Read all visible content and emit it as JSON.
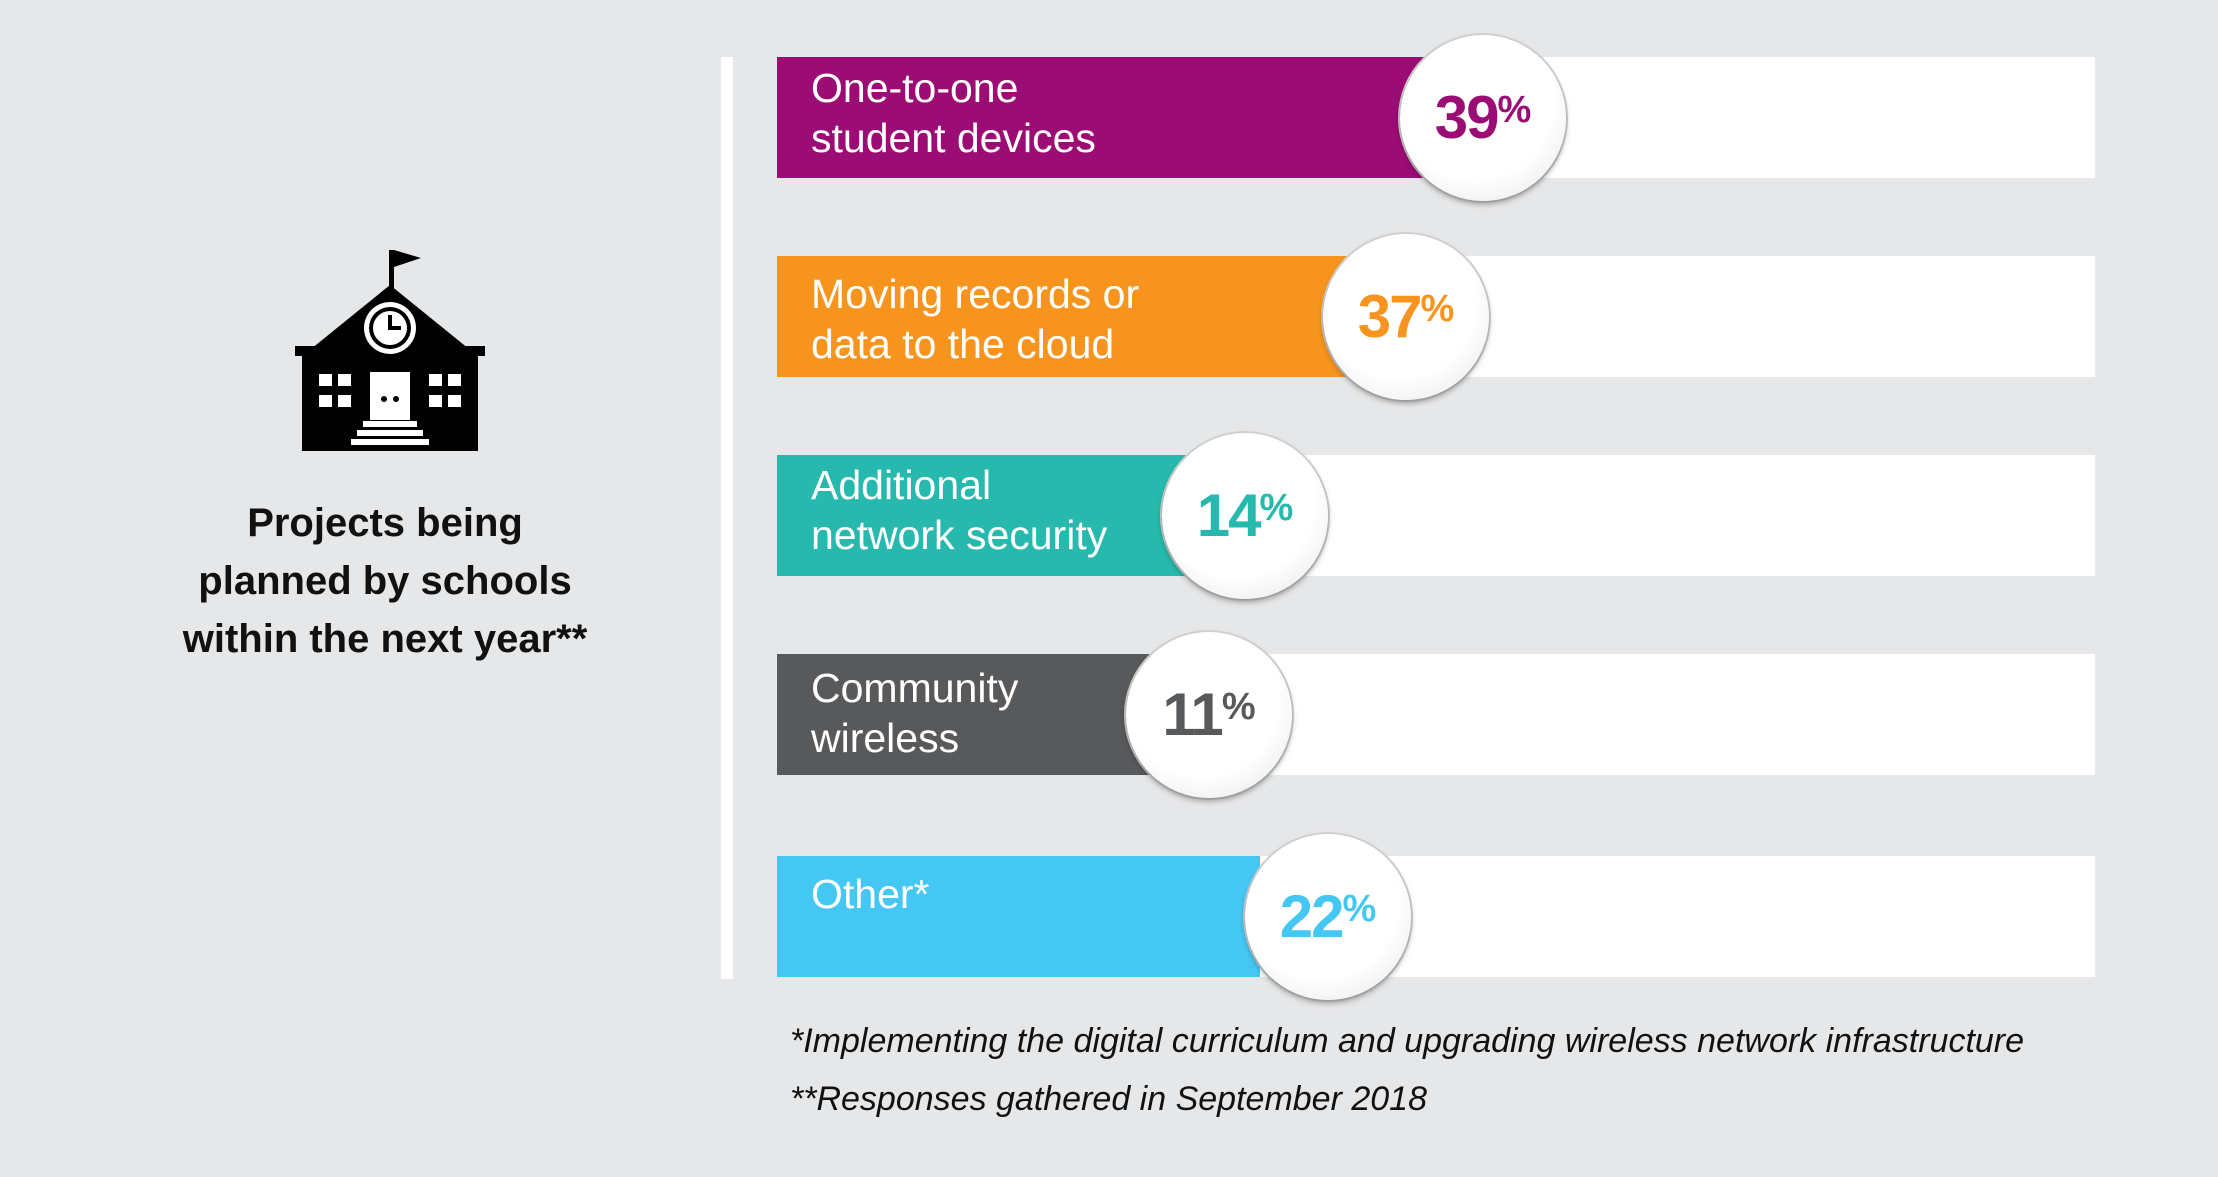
{
  "left_panel": {
    "title_lines": [
      "Projects being",
      "planned by schools",
      "within the next year**"
    ],
    "icon": "school-building-icon"
  },
  "chart_data": {
    "type": "bar",
    "orientation": "horizontal",
    "categories": [
      "One-to-one\nstudent devices",
      "Moving records or\ndata to the cloud",
      "Additional\nnetwork security",
      "Community\nwireless",
      "Other*"
    ],
    "values": [
      39,
      37,
      14,
      11,
      22
    ],
    "value_labels": [
      "39",
      "37",
      "14",
      "11",
      "22"
    ],
    "unit": "%",
    "colors": [
      "#9b0c74",
      "#f7941d",
      "#27b9ad",
      "#58595b",
      "#45c7f3"
    ],
    "label_colors": [
      "#9b0c74",
      "#f7941d",
      "#27b9ad",
      "#58595b",
      "#45c7f3"
    ],
    "track_color": "#ffffff",
    "xlim": [
      0,
      100
    ],
    "grid": false,
    "legend": "none"
  },
  "footnotes": [
    "*Implementing the digital curriculum and upgrading wireless network infrastructure",
    "**Responses gathered in September 2018"
  ]
}
